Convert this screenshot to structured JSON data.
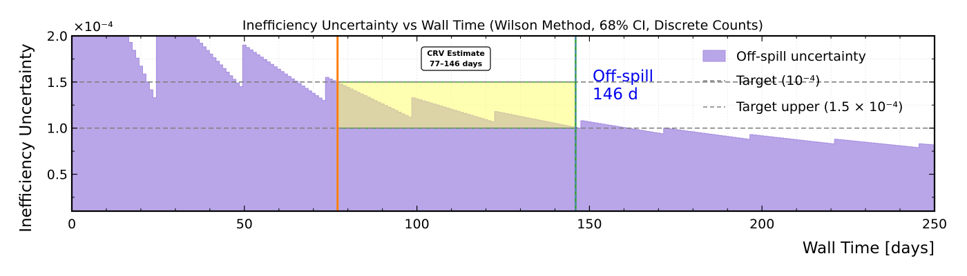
{
  "chart_data": {
    "type": "area",
    "title": "Inefficiency Uncertainty vs Wall Time (Wilson Method, 68% CI, Discrete Counts)",
    "xlabel": "Wall Time [days]",
    "ylabel": "Inefficiency Uncertainty",
    "y_scale_label": "×10⁻⁴",
    "xlim": [
      0,
      250
    ],
    "ylim": [
      0.1,
      2.0
    ],
    "x_ticks": [
      "0",
      "50",
      "100",
      "150",
      "200",
      "250"
    ],
    "y_ticks": [
      "0.5",
      "1.0",
      "1.5",
      "2.0"
    ],
    "grid": true,
    "legend_position": "top-right",
    "colors": {
      "fill": "#b9a6e8",
      "edge": "#a48bdf",
      "band": "#ffff66",
      "estimate_line": "#ff7f0e",
      "marker_line": "#2ca02c",
      "marker_text": "#0000ee",
      "target_line": "#808080"
    },
    "series": [
      {
        "name": "Off-spill uncertainty",
        "segments": [
          {
            "x0": 0,
            "x1": 16.5,
            "y0": 2.0,
            "y1": 2.0
          },
          {
            "x0": 16.5,
            "x1": 24.5,
            "y0": 1.93,
            "y1": 1.33
          },
          {
            "x0": 24.5,
            "x1": 36,
            "y0": 2.0,
            "y1": 2.0
          },
          {
            "x0": 36,
            "x1": 49.5,
            "y0": 1.96,
            "y1": 1.45
          },
          {
            "x0": 49.5,
            "x1": 73.5,
            "y0": 1.9,
            "y1": 1.3
          },
          {
            "x0": 73.5,
            "x1": 98.5,
            "y0": 1.55,
            "y1": 1.12
          },
          {
            "x0": 98.5,
            "x1": 122.5,
            "y0": 1.33,
            "y1": 1.07
          },
          {
            "x0": 122.5,
            "x1": 147.5,
            "y0": 1.18,
            "y1": 1.0
          },
          {
            "x0": 147.5,
            "x1": 171.5,
            "y0": 1.08,
            "y1": 0.94
          },
          {
            "x0": 171.5,
            "x1": 196.5,
            "y0": 1.0,
            "y1": 0.88
          },
          {
            "x0": 196.5,
            "x1": 221,
            "y0": 0.93,
            "y1": 0.83
          },
          {
            "x0": 221,
            "x1": 245.5,
            "y0": 0.88,
            "y1": 0.79
          },
          {
            "x0": 245.5,
            "x1": 250,
            "y0": 0.83,
            "y1": 0.82
          }
        ]
      }
    ],
    "target_lines": [
      {
        "name": "Target (10⁻⁴)",
        "y": 1.0
      },
      {
        "name": "Target upper (1.5 × 10⁻⁴)",
        "y": 1.5
      }
    ],
    "estimate_band": {
      "x0": 77,
      "x1": 146,
      "y0": 1.0,
      "y1": 1.5
    },
    "vertical_lines": [
      {
        "x": 77,
        "color": "#ff7f0e"
      },
      {
        "x": 146,
        "color": "#2ca02c"
      }
    ],
    "annotations": {
      "estimate_box_line1": "CRV Estimate",
      "estimate_box_line2": "77–146 days",
      "marker_line1": "Off-spill",
      "marker_line2": "146 d"
    }
  }
}
